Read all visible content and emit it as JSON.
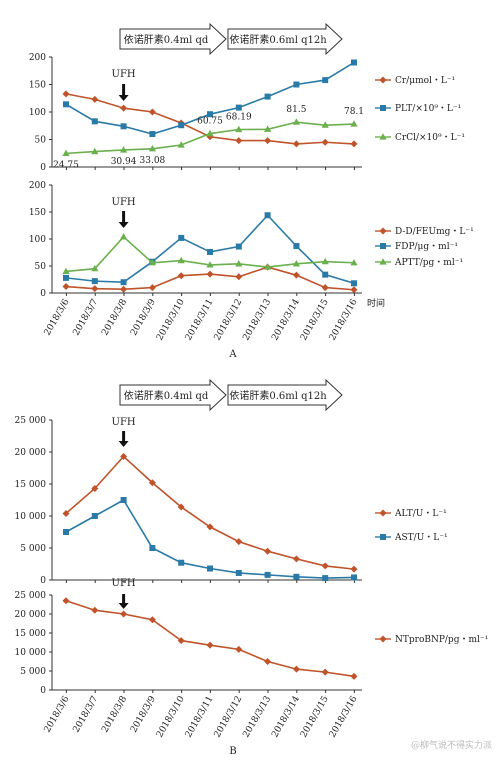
{
  "chart_data": [
    {
      "panel": "A",
      "type": "line",
      "x_label": "时间",
      "categories": [
        "2018/3/6",
        "2018/3/7",
        "2018/3/8",
        "2018/3/9",
        "2018/3/10",
        "2018/3/11",
        "2018/3/12",
        "2018/3/13",
        "2018/3/14",
        "2018/3/15",
        "2018/3/16"
      ],
      "ylim": [
        0,
        200
      ],
      "yticks": [
        "0",
        "50",
        "100",
        "150",
        "200"
      ],
      "event": "UFH",
      "treatment_arrows": [
        "依诺肝素0.4ml qd",
        "依诺肝素0.6ml q12h"
      ],
      "series": [
        {
          "name": "Cr/μmol・L⁻¹",
          "color": "#c0532a",
          "marker": "diamond",
          "values": [
            133,
            123,
            107,
            100,
            80,
            55,
            48,
            48,
            42,
            45,
            42
          ]
        },
        {
          "name": "PLT/×10⁹・L⁻¹",
          "color": "#2a7aa8",
          "marker": "square",
          "values": [
            114,
            83,
            74,
            60,
            76,
            96,
            108,
            128,
            150,
            158,
            190
          ]
        },
        {
          "name": "CrCl/×10⁹・L⁻¹",
          "color": "#6ab04c",
          "marker": "triangle",
          "values": [
            24.75,
            28,
            30.94,
            33.08,
            40,
            60.75,
            68.19,
            68.5,
            81.5,
            76,
            78.1
          ]
        }
      ],
      "data_labels": [
        "24.75",
        "30.94",
        "33.08",
        "60.75",
        "68.19",
        "81.5",
        "78.1"
      ]
    },
    {
      "panel": "A",
      "type": "line",
      "ylim": [
        0,
        200
      ],
      "yticks": [
        "0",
        "50",
        "100",
        "150",
        "200"
      ],
      "event": "UFH",
      "series": [
        {
          "name": "D-D/FEUmg・L⁻¹",
          "color": "#c0532a",
          "marker": "diamond",
          "values": [
            12,
            8,
            7,
            10,
            32,
            35,
            30,
            48,
            33,
            10,
            6
          ]
        },
        {
          "name": "FDP/μg・ml⁻¹",
          "color": "#2a7aa8",
          "marker": "square",
          "values": [
            28,
            22,
            20,
            58,
            102,
            76,
            86,
            144,
            87,
            34,
            18
          ]
        },
        {
          "name": "APTT/pg・ml⁻¹",
          "color": "#6ab04c",
          "marker": "triangle",
          "values": [
            40,
            45,
            104,
            56,
            60,
            52,
            54,
            48,
            54,
            58,
            56
          ]
        }
      ]
    },
    {
      "panel": "B",
      "type": "line",
      "categories": [
        "2018/3/6",
        "2018/3/7",
        "2018/3/8",
        "2018/3/9",
        "2018/3/10",
        "2018/3/11",
        "2018/3/12",
        "2018/3/13",
        "2018/3/14",
        "2018/3/15",
        "2018/3/16"
      ],
      "ylim": [
        0,
        25000
      ],
      "yticks": [
        "0",
        "5 000",
        "10 000",
        "15 000",
        "20 000",
        "25 000"
      ],
      "event": "UFH",
      "treatment_arrows": [
        "依诺肝素0.4ml qd",
        "依诺肝素0.6ml q12h"
      ],
      "series": [
        {
          "name": "ALT/U・L⁻¹",
          "color": "#c0532a",
          "marker": "diamond",
          "values": [
            10400,
            14300,
            19300,
            15200,
            11400,
            8300,
            6000,
            4500,
            3300,
            2200,
            1700
          ]
        },
        {
          "name": "AST/U・L⁻¹",
          "color": "#2a7aa8",
          "marker": "square",
          "values": [
            7500,
            10000,
            12500,
            5000,
            2700,
            1800,
            1100,
            800,
            500,
            300,
            400
          ]
        }
      ]
    },
    {
      "panel": "B",
      "type": "line",
      "ylim": [
        0,
        25000
      ],
      "yticks": [
        "0",
        "5 000",
        "10 000",
        "15 000",
        "20 000",
        "25 000"
      ],
      "event": "UFH",
      "series": [
        {
          "name": "NTproBNP/pg・ml⁻¹",
          "color": "#c0532a",
          "marker": "diamond",
          "values": [
            23500,
            21000,
            20000,
            18500,
            13000,
            11800,
            10700,
            7500,
            5500,
            4700,
            3600
          ]
        }
      ]
    }
  ],
  "panel_labels": [
    "A",
    "B"
  ],
  "watermark": "@柳气说不得实力派"
}
